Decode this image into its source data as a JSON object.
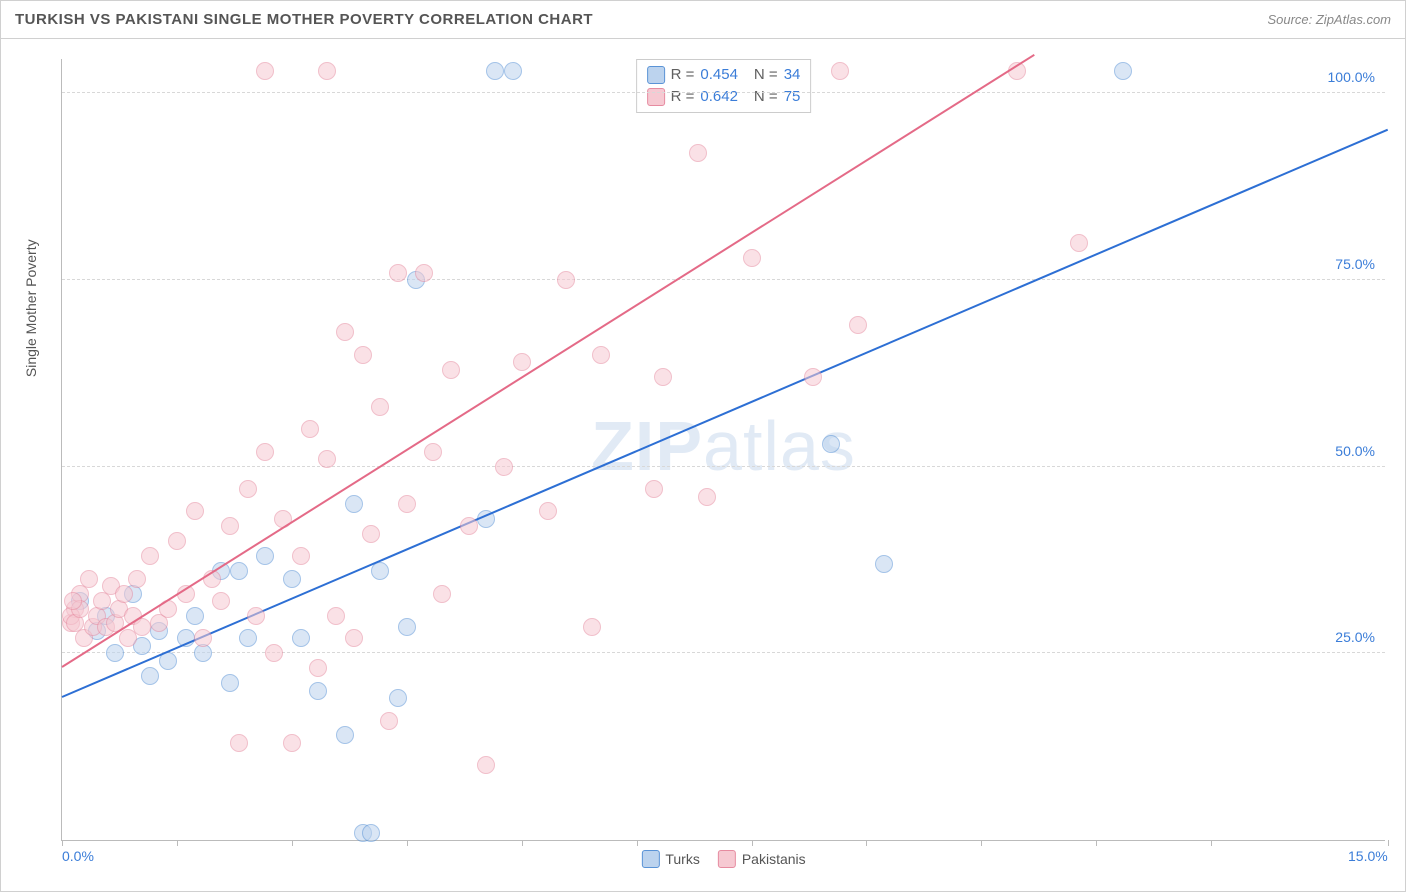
{
  "title": "TURKISH VS PAKISTANI SINGLE MOTHER POVERTY CORRELATION CHART",
  "source": "Source: ZipAtlas.com",
  "watermark_bold": "ZIP",
  "watermark_rest": "atlas",
  "ylabel": "Single Mother Poverty",
  "chart": {
    "type": "scatter",
    "xlim": [
      0,
      15
    ],
    "ylim": [
      0,
      105
    ],
    "xtick_positions": [
      0,
      1.3,
      2.6,
      3.9,
      5.2,
      6.5,
      7.8,
      9.1,
      10.4,
      11.7,
      13.0,
      15.0
    ],
    "xtick_labels_shown": {
      "0": "0.0%",
      "15": "15.0%"
    },
    "ygrid": [
      25,
      50,
      75,
      100
    ],
    "ytick_labels": {
      "25": "25.0%",
      "50": "50.0%",
      "75": "75.0%",
      "100": "100.0%"
    },
    "background_color": "#ffffff",
    "grid_color": "#d8d8d8",
    "axis_color": "#bbbbbb",
    "label_color": "#3b7dd8",
    "point_radius": 9,
    "point_opacity": 0.55,
    "series": [
      {
        "name": "Turks",
        "color_fill": "#bcd3ee",
        "color_stroke": "#5a93d6",
        "R": "0.454",
        "N": "34",
        "trend": {
          "x1": 0,
          "y1": 19,
          "x2": 15,
          "y2": 95,
          "color": "#2d6fd4",
          "width": 2
        },
        "points": [
          [
            0.2,
            32
          ],
          [
            0.4,
            28
          ],
          [
            0.5,
            30
          ],
          [
            0.6,
            25
          ],
          [
            0.8,
            33
          ],
          [
            0.9,
            26
          ],
          [
            1.0,
            22
          ],
          [
            1.1,
            28
          ],
          [
            1.2,
            24
          ],
          [
            1.4,
            27
          ],
          [
            1.5,
            30
          ],
          [
            1.6,
            25
          ],
          [
            1.8,
            36
          ],
          [
            1.9,
            21
          ],
          [
            2.0,
            36
          ],
          [
            2.1,
            27
          ],
          [
            2.3,
            38
          ],
          [
            2.6,
            35
          ],
          [
            2.7,
            27
          ],
          [
            2.9,
            20
          ],
          [
            3.2,
            14
          ],
          [
            3.3,
            45
          ],
          [
            3.4,
            1
          ],
          [
            3.5,
            1
          ],
          [
            3.6,
            36
          ],
          [
            3.8,
            19
          ],
          [
            3.9,
            28.5
          ],
          [
            4.0,
            75
          ],
          [
            4.9,
            103
          ],
          [
            5.1,
            103
          ],
          [
            4.8,
            43
          ],
          [
            8.7,
            53
          ],
          [
            9.3,
            37
          ],
          [
            12.0,
            103
          ]
        ]
      },
      {
        "name": "Pakistanis",
        "color_fill": "#f6c9d2",
        "color_stroke": "#e68ba0",
        "R": "0.642",
        "N": "75",
        "trend": {
          "x1": 0,
          "y1": 23,
          "x2": 11,
          "y2": 105,
          "color": "#e46a87",
          "width": 2
        },
        "points": [
          [
            0.1,
            29
          ],
          [
            0.15,
            31
          ],
          [
            0.2,
            33
          ],
          [
            0.25,
            27
          ],
          [
            0.3,
            35
          ],
          [
            0.35,
            28.5
          ],
          [
            0.4,
            30
          ],
          [
            0.45,
            32
          ],
          [
            0.5,
            28.5
          ],
          [
            0.55,
            34
          ],
          [
            0.6,
            29
          ],
          [
            0.65,
            31
          ],
          [
            0.7,
            33
          ],
          [
            0.75,
            27
          ],
          [
            0.8,
            30
          ],
          [
            0.85,
            35
          ],
          [
            0.9,
            28.5
          ],
          [
            1.0,
            38
          ],
          [
            1.1,
            29
          ],
          [
            1.2,
            31
          ],
          [
            1.3,
            40
          ],
          [
            1.4,
            33
          ],
          [
            1.5,
            44
          ],
          [
            1.6,
            27
          ],
          [
            1.7,
            35
          ],
          [
            1.8,
            32
          ],
          [
            1.9,
            42
          ],
          [
            2.0,
            13
          ],
          [
            2.1,
            47
          ],
          [
            2.2,
            30
          ],
          [
            2.3,
            52
          ],
          [
            2.4,
            25
          ],
          [
            2.5,
            43
          ],
          [
            2.6,
            13
          ],
          [
            2.7,
            38
          ],
          [
            2.8,
            55
          ],
          [
            2.9,
            23
          ],
          [
            3.0,
            51
          ],
          [
            3.1,
            30
          ],
          [
            3.2,
            68
          ],
          [
            3.3,
            27
          ],
          [
            3.4,
            65
          ],
          [
            3.5,
            41
          ],
          [
            3.6,
            58
          ],
          [
            3.7,
            16
          ],
          [
            3.8,
            76
          ],
          [
            3.9,
            45
          ],
          [
            4.1,
            76
          ],
          [
            4.2,
            52
          ],
          [
            4.3,
            33
          ],
          [
            4.4,
            63
          ],
          [
            4.6,
            42
          ],
          [
            4.8,
            10
          ],
          [
            5.0,
            50
          ],
          [
            5.2,
            64
          ],
          [
            5.5,
            44
          ],
          [
            5.7,
            75
          ],
          [
            6.0,
            28.5
          ],
          [
            6.1,
            65
          ],
          [
            6.7,
            47
          ],
          [
            6.8,
            62
          ],
          [
            7.2,
            92
          ],
          [
            7.3,
            46
          ],
          [
            7.8,
            78
          ],
          [
            8.5,
            62
          ],
          [
            8.8,
            103
          ],
          [
            9.0,
            69
          ],
          [
            10.8,
            103
          ],
          [
            11.5,
            80
          ],
          [
            2.3,
            103
          ],
          [
            3.0,
            103
          ],
          [
            0.1,
            30
          ],
          [
            0.15,
            29
          ],
          [
            0.2,
            31
          ],
          [
            0.12,
            32
          ]
        ]
      }
    ],
    "bottom_legend": [
      {
        "label": "Turks",
        "fill": "#bcd3ee",
        "stroke": "#5a93d6"
      },
      {
        "label": "Pakistanis",
        "fill": "#f6c9d2",
        "stroke": "#e68ba0"
      }
    ]
  }
}
